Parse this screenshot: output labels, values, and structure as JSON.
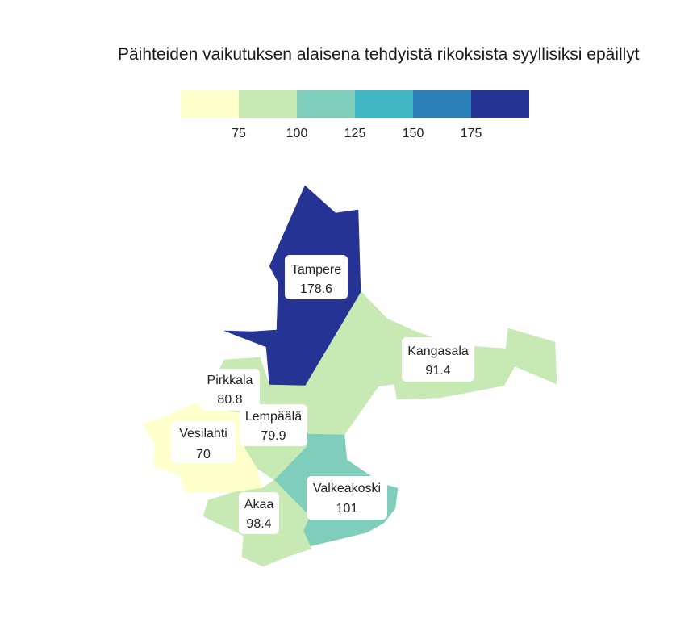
{
  "title": "Päihteiden vaikutuksen alaisena tehdyistä rikoksista syyllisiksi epäillyt",
  "legend": {
    "colors": [
      "#ffffcc",
      "#c7e9b4",
      "#7fcdbb",
      "#41b6c4",
      "#2c7fb8",
      "#253494"
    ],
    "ticks": [
      "75",
      "100",
      "125",
      "150",
      "175"
    ]
  },
  "regions": [
    {
      "name": "Tampere",
      "value": "178.6",
      "color": "#253494"
    },
    {
      "name": "Kangasala",
      "value": "91.4",
      "color": "#c7e9b4"
    },
    {
      "name": "Pirkkala",
      "value": "80.8",
      "color": "#c7e9b4"
    },
    {
      "name": "Lempäälä",
      "value": "79.9",
      "color": "#c7e9b4"
    },
    {
      "name": "Vesilahti",
      "value": "70",
      "color": "#ffffcc"
    },
    {
      "name": "Valkeakoski",
      "value": "101",
      "color": "#7fcdbb"
    },
    {
      "name": "Akaa",
      "value": "98.4",
      "color": "#c7e9b4"
    }
  ]
}
